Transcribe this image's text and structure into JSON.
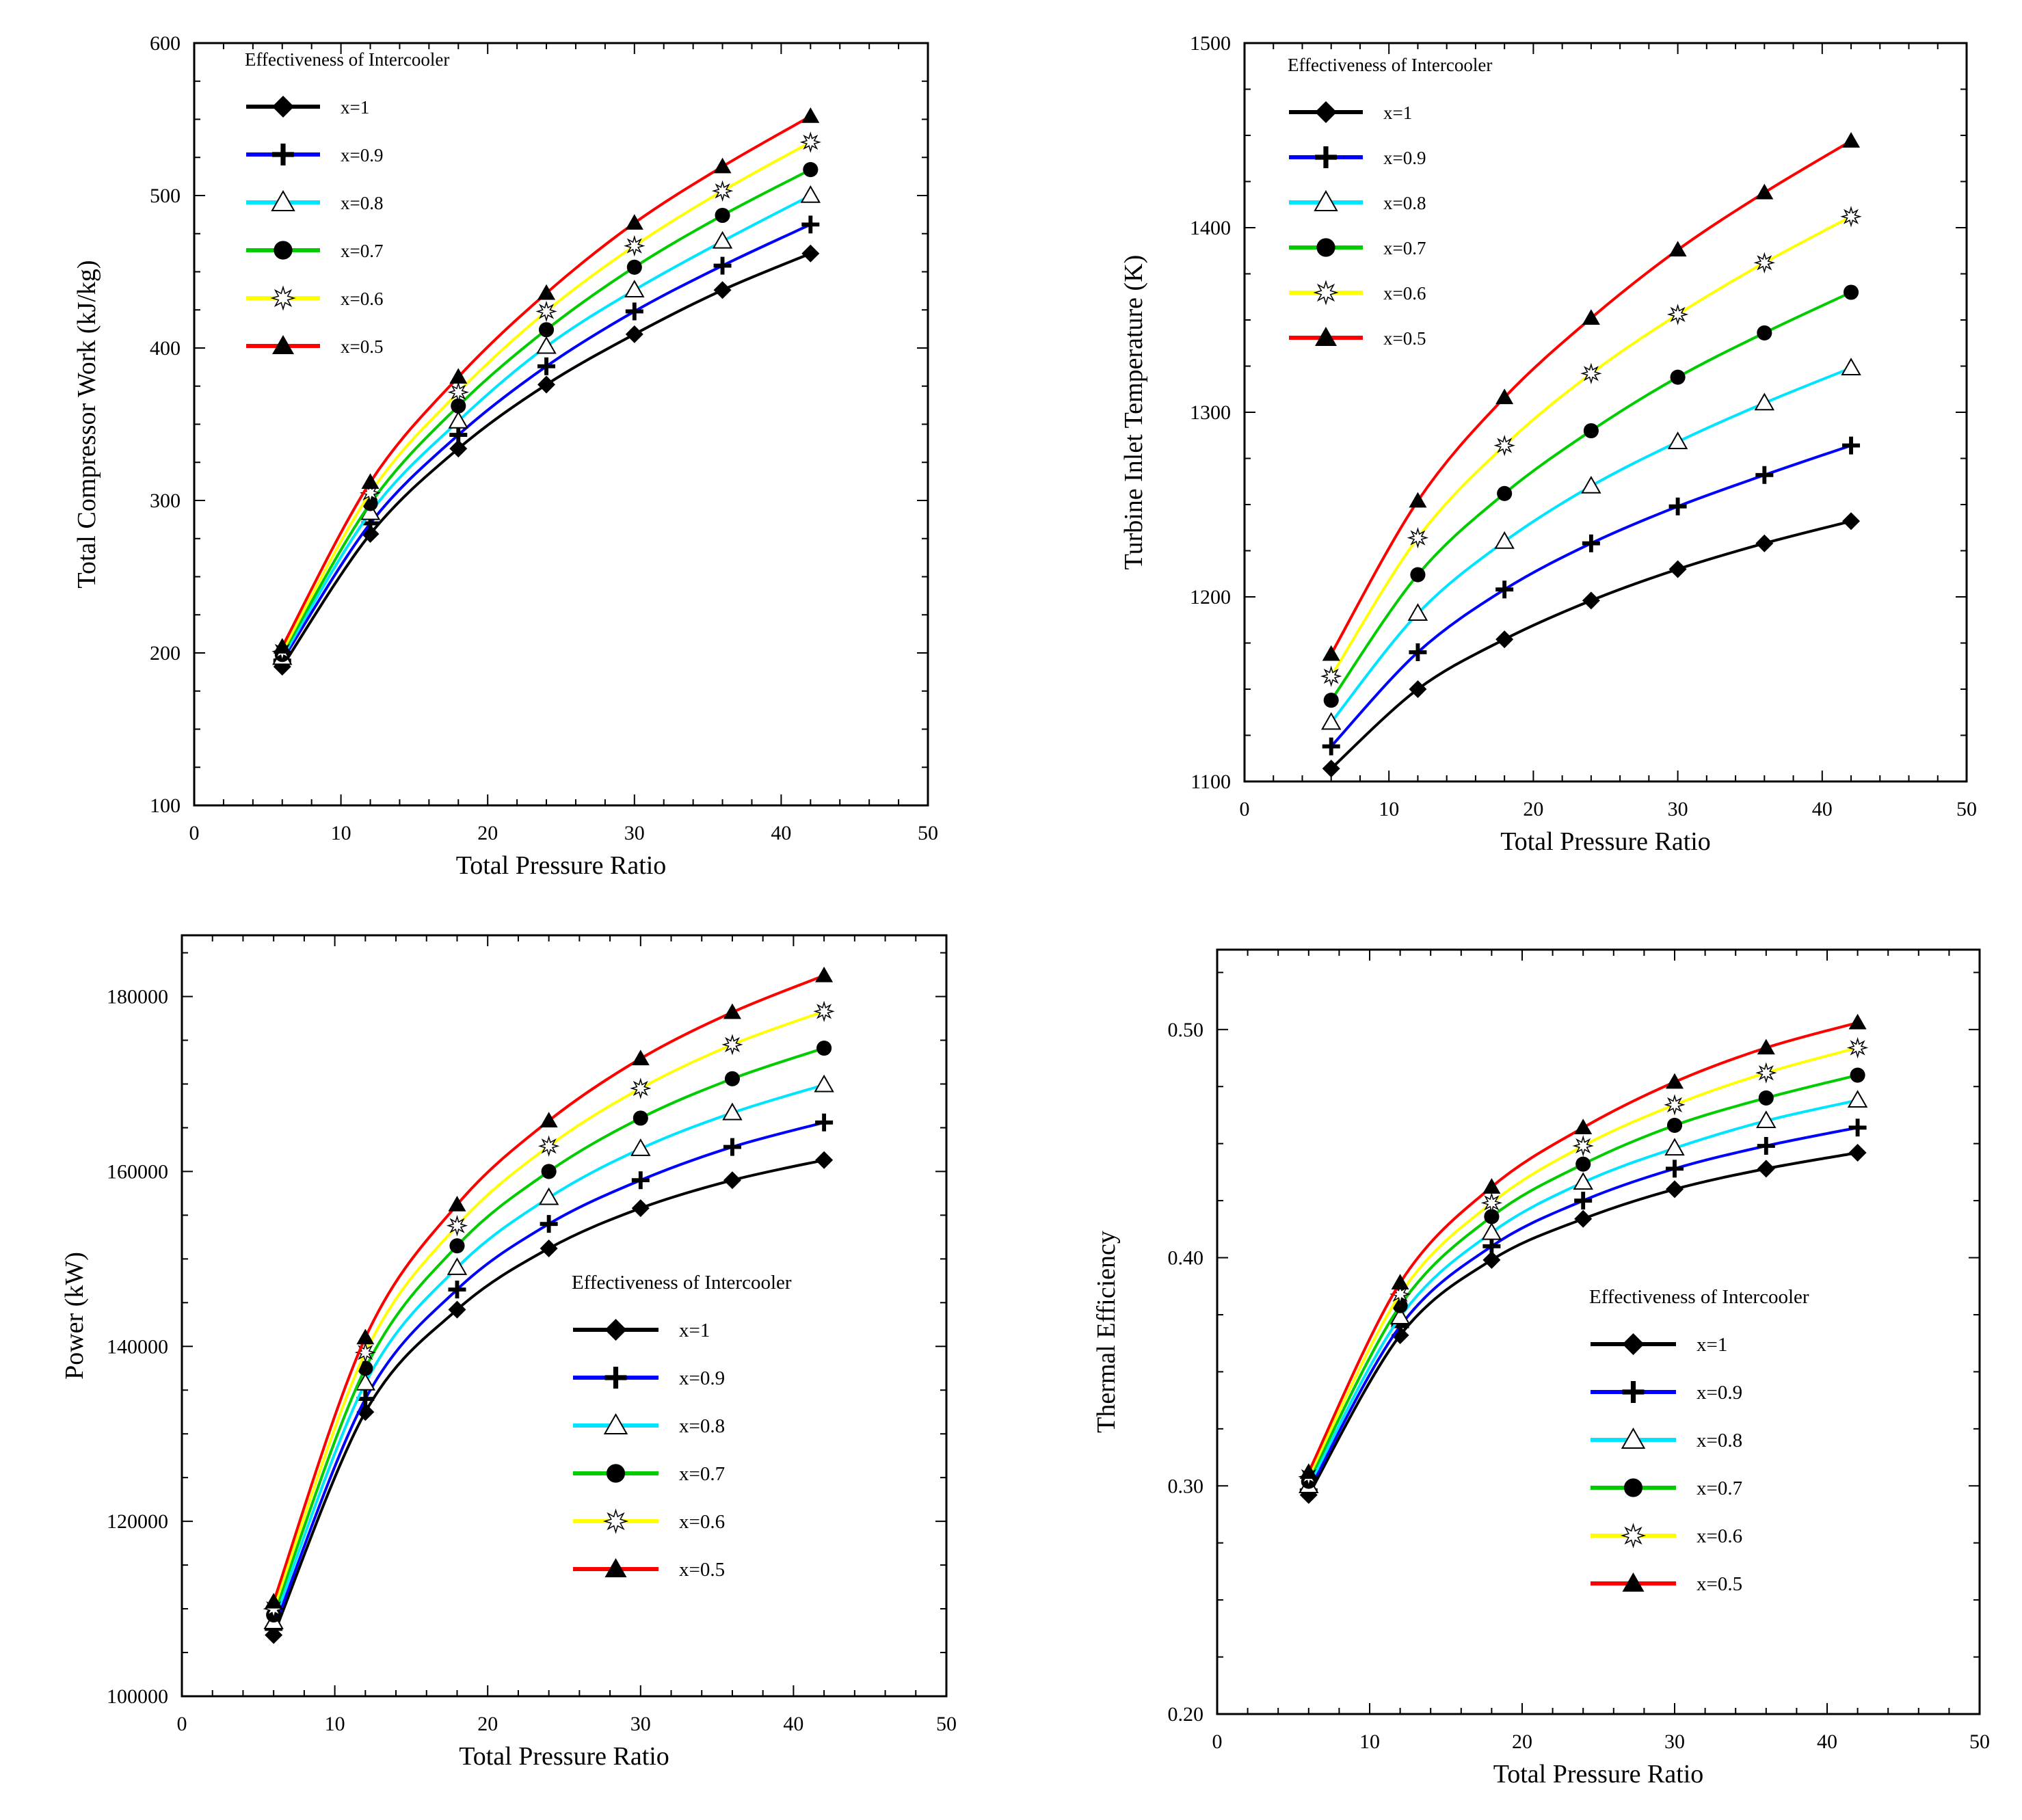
{
  "chart_data": [
    {
      "type": "line",
      "panel": "top-left",
      "title": "",
      "xlabel": "Total Pressure Ratio",
      "ylabel": "Total Compressor Work (kJ/kg)",
      "xlim": [
        0,
        50
      ],
      "ylim": [
        100,
        600
      ],
      "xticks": [
        "0",
        "10",
        "20",
        "30",
        "40",
        "50"
      ],
      "yticks": [
        "100",
        "200",
        "300",
        "400",
        "500",
        "600"
      ],
      "legend_title": "Effectiveness of Intercooler",
      "legend_position": "top-left",
      "x": [
        6,
        12,
        18,
        24,
        30,
        36,
        42
      ],
      "series": [
        {
          "name": "x=1",
          "color": "#000000",
          "marker": "diamond",
          "values": [
            191,
            278,
            334,
            376,
            409,
            438,
            462
          ]
        },
        {
          "name": "x=0.9",
          "color": "#0000ff",
          "marker": "plus",
          "values": [
            195,
            285,
            343,
            388,
            424,
            454,
            481
          ]
        },
        {
          "name": "x=0.8",
          "color": "#00e5ff",
          "marker": "triangle-open",
          "values": [
            197,
            292,
            352,
            401,
            438,
            470,
            500
          ]
        },
        {
          "name": "x=0.7",
          "color": "#00cc00",
          "marker": "circle",
          "values": [
            199,
            298,
            362,
            412,
            453,
            487,
            517
          ]
        },
        {
          "name": "x=0.6",
          "color": "#ffff00",
          "marker": "star",
          "values": [
            201,
            305,
            371,
            424,
            467,
            503,
            535
          ]
        },
        {
          "name": "x=0.5",
          "color": "#ff0000",
          "marker": "triangle",
          "values": [
            204,
            312,
            381,
            436,
            482,
            519,
            552
          ]
        }
      ]
    },
    {
      "type": "line",
      "panel": "top-right",
      "title": "",
      "xlabel": "Total Pressure Ratio",
      "ylabel": "Turbine Inlet Temperature (K)",
      "xlim": [
        0,
        50
      ],
      "ylim": [
        1100,
        1500
      ],
      "xticks": [
        "0",
        "10",
        "20",
        "30",
        "40",
        "50"
      ],
      "yticks": [
        "1100",
        "1200",
        "1300",
        "1400",
        "1500"
      ],
      "legend_title": "Effectiveness of Intercooler",
      "legend_position": "top-left",
      "x": [
        6,
        12,
        18,
        24,
        30,
        36,
        42
      ],
      "series": [
        {
          "name": "x=1",
          "color": "#000000",
          "marker": "diamond",
          "values": [
            1107,
            1150,
            1177,
            1198,
            1215,
            1229,
            1241
          ]
        },
        {
          "name": "x=0.9",
          "color": "#0000ff",
          "marker": "plus",
          "values": [
            1119,
            1170,
            1204,
            1229,
            1249,
            1266,
            1282
          ]
        },
        {
          "name": "x=0.8",
          "color": "#00e5ff",
          "marker": "triangle-open",
          "values": [
            1132,
            1191,
            1230,
            1260,
            1284,
            1305,
            1324
          ]
        },
        {
          "name": "x=0.7",
          "color": "#00cc00",
          "marker": "circle",
          "values": [
            1144,
            1212,
            1256,
            1290,
            1319,
            1343,
            1365
          ]
        },
        {
          "name": "x=0.6",
          "color": "#ffff00",
          "marker": "star",
          "values": [
            1157,
            1232,
            1282,
            1321,
            1353,
            1381,
            1406
          ]
        },
        {
          "name": "x=0.5",
          "color": "#ff0000",
          "marker": "triangle",
          "values": [
            1169,
            1252,
            1308,
            1351,
            1388,
            1419,
            1447
          ]
        }
      ]
    },
    {
      "type": "line",
      "panel": "bottom-left",
      "title": "",
      "xlabel": "Total Pressure Ratio",
      "ylabel": "Power (kW)",
      "xlim": [
        0,
        50
      ],
      "ylim": [
        100000,
        187000
      ],
      "xticks": [
        "0",
        "10",
        "20",
        "30",
        "40",
        "50"
      ],
      "yticks": [
        "100000",
        "120000",
        "140000",
        "160000",
        "180000"
      ],
      "ytick_values": [
        100000,
        120000,
        140000,
        160000,
        180000
      ],
      "legend_title": "Effectiveness of Intercooler",
      "legend_position": "center-right",
      "x": [
        6,
        12,
        18,
        24,
        30,
        36,
        42
      ],
      "series": [
        {
          "name": "x=1",
          "color": "#000000",
          "marker": "diamond",
          "values": [
            107000,
            132500,
            144200,
            151200,
            155800,
            159000,
            161300
          ]
        },
        {
          "name": "x=0.9",
          "color": "#0000ff",
          "marker": "plus",
          "values": [
            107700,
            134000,
            146500,
            154000,
            159000,
            162800,
            165600
          ]
        },
        {
          "name": "x=0.8",
          "color": "#00e5ff",
          "marker": "triangle-open",
          "values": [
            108500,
            135800,
            149000,
            157000,
            162600,
            166700,
            169900
          ]
        },
        {
          "name": "x=0.7",
          "color": "#00cc00",
          "marker": "circle",
          "values": [
            109300,
            137500,
            151500,
            160000,
            166100,
            170600,
            174100
          ]
        },
        {
          "name": "x=0.6",
          "color": "#ffff00",
          "marker": "star",
          "values": [
            110000,
            139300,
            153800,
            162900,
            169500,
            174500,
            178300
          ]
        },
        {
          "name": "x=0.5",
          "color": "#ff0000",
          "marker": "triangle",
          "values": [
            110800,
            141000,
            156200,
            165800,
            172900,
            178200,
            182400
          ]
        }
      ]
    },
    {
      "type": "line",
      "panel": "bottom-right",
      "title": "",
      "xlabel": "Total Pressure Ratio",
      "ylabel": "Thermal Efficiency",
      "xlim": [
        0,
        50
      ],
      "ylim": [
        0.2,
        0.535
      ],
      "xticks": [
        "0",
        "10",
        "20",
        "30",
        "40",
        "50"
      ],
      "yticks": [
        "0.20",
        "0.30",
        "0.40",
        "0.50"
      ],
      "ytick_values": [
        0.2,
        0.3,
        0.4,
        0.5
      ],
      "legend_title": "Effectiveness of Intercooler",
      "legend_position": "center-right",
      "x": [
        6,
        12,
        18,
        24,
        30,
        36,
        42
      ],
      "series": [
        {
          "name": "x=1",
          "color": "#000000",
          "marker": "diamond",
          "values": [
            0.296,
            0.366,
            0.399,
            0.417,
            0.43,
            0.439,
            0.446
          ]
        },
        {
          "name": "x=0.9",
          "color": "#0000ff",
          "marker": "plus",
          "values": [
            0.298,
            0.37,
            0.405,
            0.425,
            0.439,
            0.449,
            0.457
          ]
        },
        {
          "name": "x=0.8",
          "color": "#00e5ff",
          "marker": "triangle-open",
          "values": [
            0.3,
            0.374,
            0.411,
            0.433,
            0.448,
            0.46,
            0.469
          ]
        },
        {
          "name": "x=0.7",
          "color": "#00cc00",
          "marker": "circle",
          "values": [
            0.302,
            0.379,
            0.418,
            0.441,
            0.458,
            0.47,
            0.48
          ]
        },
        {
          "name": "x=0.6",
          "color": "#ffff00",
          "marker": "star",
          "values": [
            0.304,
            0.384,
            0.424,
            0.449,
            0.467,
            0.481,
            0.492
          ]
        },
        {
          "name": "x=0.5",
          "color": "#ff0000",
          "marker": "triangle",
          "values": [
            0.306,
            0.389,
            0.431,
            0.457,
            0.477,
            0.492,
            0.503
          ]
        }
      ]
    }
  ]
}
